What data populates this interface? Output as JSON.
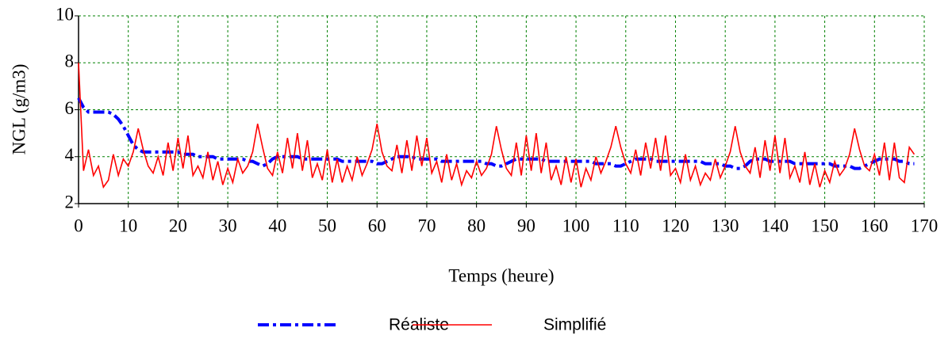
{
  "chart_data": {
    "type": "line",
    "xlabel": "Temps (heure)",
    "ylabel": "NGL (g/m3)",
    "x": [
      0,
      1,
      2,
      3,
      4,
      5,
      6,
      7,
      8,
      9,
      10,
      11,
      12,
      13,
      14,
      15,
      16,
      17,
      18,
      19,
      20,
      21,
      22,
      23,
      24,
      25,
      26,
      27,
      28,
      29,
      30,
      31,
      32,
      33,
      34,
      35,
      36,
      37,
      38,
      39,
      40,
      41,
      42,
      43,
      44,
      45,
      46,
      47,
      48,
      49,
      50,
      51,
      52,
      53,
      54,
      55,
      56,
      57,
      58,
      59,
      60,
      61,
      62,
      63,
      64,
      65,
      66,
      67,
      68,
      69,
      70,
      71,
      72,
      73,
      74,
      75,
      76,
      77,
      78,
      79,
      80,
      81,
      82,
      83,
      84,
      85,
      86,
      87,
      88,
      89,
      90,
      91,
      92,
      93,
      94,
      95,
      96,
      97,
      98,
      99,
      100,
      101,
      102,
      103,
      104,
      105,
      106,
      107,
      108,
      109,
      110,
      111,
      112,
      113,
      114,
      115,
      116,
      117,
      118,
      119,
      120,
      121,
      122,
      123,
      124,
      125,
      126,
      127,
      128,
      129,
      130,
      131,
      132,
      133,
      134,
      135,
      136,
      137,
      138,
      139,
      140,
      141,
      142,
      143,
      144,
      145,
      146,
      147,
      148,
      149,
      150,
      151,
      152,
      153,
      154,
      155,
      156,
      157,
      158,
      159,
      160,
      161,
      162,
      163,
      164,
      165,
      166,
      167,
      168
    ],
    "series": [
      {
        "name": "Réaliste",
        "color": "#0000ff",
        "style": "dashdot",
        "values": [
          6.5,
          6.1,
          5.9,
          5.9,
          5.9,
          5.9,
          5.9,
          5.8,
          5.6,
          5.3,
          4.9,
          4.5,
          4.3,
          4.2,
          4.2,
          4.2,
          4.2,
          4.2,
          4.2,
          4.2,
          4.2,
          4.1,
          4.1,
          4.1,
          4.0,
          4.0,
          4.0,
          4.0,
          3.9,
          3.9,
          3.9,
          3.9,
          3.9,
          3.9,
          3.8,
          3.8,
          3.7,
          3.6,
          3.7,
          3.9,
          4.0,
          4.0,
          4.0,
          4.0,
          4.0,
          3.9,
          3.9,
          3.9,
          3.9,
          3.9,
          3.9,
          3.9,
          3.9,
          3.8,
          3.8,
          3.8,
          3.8,
          3.8,
          3.8,
          3.8,
          3.7,
          3.7,
          3.8,
          3.9,
          4.0,
          4.0,
          4.0,
          4.0,
          3.9,
          3.9,
          3.9,
          3.9,
          3.9,
          3.8,
          3.8,
          3.8,
          3.8,
          3.8,
          3.8,
          3.8,
          3.8,
          3.8,
          3.7,
          3.7,
          3.6,
          3.6,
          3.7,
          3.8,
          3.9,
          3.9,
          3.9,
          3.9,
          3.9,
          3.9,
          3.8,
          3.8,
          3.8,
          3.8,
          3.8,
          3.8,
          3.8,
          3.8,
          3.8,
          3.8,
          3.7,
          3.7,
          3.7,
          3.7,
          3.6,
          3.6,
          3.7,
          3.8,
          3.9,
          3.9,
          3.9,
          3.9,
          3.8,
          3.8,
          3.8,
          3.8,
          3.8,
          3.8,
          3.8,
          3.8,
          3.8,
          3.8,
          3.7,
          3.7,
          3.7,
          3.7,
          3.6,
          3.6,
          3.5,
          3.5,
          3.6,
          3.8,
          3.9,
          3.9,
          3.9,
          3.8,
          3.8,
          3.8,
          3.8,
          3.8,
          3.7,
          3.7,
          3.7,
          3.7,
          3.7,
          3.7,
          3.7,
          3.7,
          3.6,
          3.6,
          3.6,
          3.6,
          3.5,
          3.5,
          3.6,
          3.7,
          3.8,
          3.9,
          3.9,
          3.9,
          3.9,
          3.8,
          3.8,
          3.7,
          3.7
        ]
      },
      {
        "name": "Simplifié",
        "color": "#ff0000",
        "style": "solid",
        "values": [
          8.0,
          3.4,
          4.3,
          3.2,
          3.6,
          2.7,
          3.0,
          4.1,
          3.2,
          3.9,
          3.6,
          4.2,
          5.2,
          4.3,
          3.6,
          3.3,
          4.0,
          3.2,
          4.6,
          3.4,
          4.8,
          3.5,
          4.9,
          3.2,
          3.6,
          3.1,
          4.2,
          3.0,
          3.8,
          2.8,
          3.5,
          2.9,
          3.9,
          3.3,
          3.6,
          4.2,
          5.4,
          4.4,
          3.5,
          3.2,
          4.2,
          3.3,
          4.8,
          3.5,
          5.0,
          3.4,
          4.7,
          3.1,
          3.7,
          3.0,
          4.3,
          2.9,
          3.9,
          2.9,
          3.6,
          3.0,
          4.0,
          3.2,
          3.7,
          4.3,
          5.4,
          4.2,
          3.6,
          3.4,
          4.5,
          3.3,
          4.7,
          3.4,
          4.9,
          3.6,
          4.8,
          3.3,
          3.8,
          2.9,
          4.1,
          3.0,
          3.7,
          2.8,
          3.4,
          3.1,
          3.8,
          3.2,
          3.5,
          4.1,
          5.3,
          4.3,
          3.5,
          3.2,
          4.6,
          3.2,
          4.9,
          3.4,
          5.0,
          3.3,
          4.6,
          3.0,
          3.6,
          2.8,
          4.0,
          2.9,
          3.9,
          2.7,
          3.5,
          3.0,
          4.0,
          3.3,
          3.8,
          4.4,
          5.3,
          4.4,
          3.7,
          3.3,
          4.3,
          3.2,
          4.6,
          3.5,
          4.8,
          3.4,
          4.9,
          3.2,
          3.5,
          2.9,
          4.1,
          3.0,
          3.6,
          2.8,
          3.3,
          3.0,
          3.9,
          3.1,
          3.6,
          4.2,
          5.3,
          4.2,
          3.6,
          3.3,
          4.4,
          3.1,
          4.7,
          3.4,
          4.9,
          3.3,
          4.8,
          3.1,
          3.6,
          2.9,
          4.2,
          2.8,
          3.7,
          2.7,
          3.4,
          2.9,
          3.8,
          3.2,
          3.5,
          4.1,
          5.2,
          4.3,
          3.6,
          3.4,
          4.1,
          3.2,
          4.6,
          3.0,
          4.6,
          3.1,
          2.9,
          4.4,
          4.1
        ]
      }
    ],
    "xlim": [
      0,
      170
    ],
    "xticks": [
      0,
      10,
      20,
      30,
      40,
      50,
      60,
      70,
      80,
      90,
      100,
      110,
      120,
      130,
      140,
      150,
      160,
      170
    ],
    "ylim": [
      2,
      10
    ],
    "yticks": [
      2,
      4,
      6,
      8,
      10
    ],
    "grid": true,
    "grid_color": "#008000",
    "legend": "bottom"
  }
}
